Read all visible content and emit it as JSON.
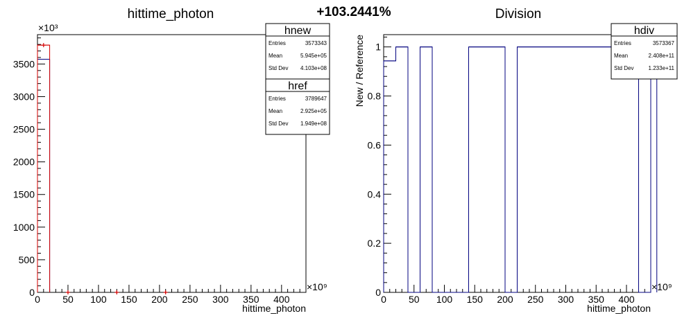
{
  "canvas_title": "+103.2441%",
  "chart_data": [
    {
      "type": "histogram",
      "title": "hittime_photon",
      "xlabel": "hittime_photon",
      "ylabel": "",
      "x_exponent_label": "×10⁹",
      "y_exponent_label": "×10³",
      "xlim": [
        0,
        440
      ],
      "ylim": [
        0,
        3950
      ],
      "x_ticks": [
        "0",
        "50",
        "100",
        "150",
        "200",
        "250",
        "300",
        "350",
        "400"
      ],
      "y_ticks": [
        "0",
        "500",
        "1000",
        "1500",
        "2000",
        "2500",
        "3000",
        "3500"
      ],
      "bin_width": 20,
      "series": [
        {
          "name": "hnew",
          "color": "#00007f",
          "bins": [
            [
              0,
              20,
              3573.343
            ]
          ]
        },
        {
          "name": "href",
          "color": "#d40000",
          "bins": [
            [
              0,
              20,
              3789.647
            ]
          ],
          "markers": [
            [
              10,
              3789.647
            ],
            [
              50,
              0
            ],
            [
              130,
              0
            ],
            [
              210,
              0
            ]
          ]
        }
      ],
      "stats": [
        {
          "title": "hnew",
          "rows": [
            {
              "key": "Entries",
              "value": "3573343"
            },
            {
              "key": "Mean",
              "value": "5.945e+05"
            },
            {
              "key": "Std Dev",
              "value": "4.103e+08"
            }
          ]
        },
        {
          "title": "href",
          "rows": [
            {
              "key": "Entries",
              "value": "3789647"
            },
            {
              "key": "Mean",
              "value": "2.925e+05"
            },
            {
              "key": "Std Dev",
              "value": "1.949e+08"
            }
          ]
        }
      ]
    },
    {
      "type": "histogram",
      "title": "Division",
      "xlabel": "hittime_photon",
      "ylabel": "New / Reference",
      "x_exponent_label": "×10⁹",
      "xlim": [
        0,
        440
      ],
      "ylim": [
        0,
        1.05
      ],
      "x_ticks": [
        "0",
        "50",
        "100",
        "150",
        "200",
        "250",
        "300",
        "350",
        "400"
      ],
      "y_ticks": [
        "0",
        "0.2",
        "0.4",
        "0.6",
        "0.8",
        "1"
      ],
      "bin_width": 20,
      "series": [
        {
          "name": "hdiv",
          "color": "#00007f",
          "bins": [
            [
              0,
              20,
              0.943
            ],
            [
              20,
              40,
              1
            ],
            [
              40,
              60,
              0
            ],
            [
              60,
              80,
              1
            ],
            [
              80,
              140,
              0
            ],
            [
              140,
              200,
              1
            ],
            [
              200,
              220,
              0
            ],
            [
              220,
              400,
              1
            ],
            [
              400,
              420,
              0.98
            ],
            [
              420,
              440,
              0
            ],
            [
              440,
              450,
              1
            ]
          ]
        }
      ],
      "stats": [
        {
          "title": "hdiv",
          "rows": [
            {
              "key": "Entries",
              "value": "3573367"
            },
            {
              "key": "Mean",
              "value": "2.408e+11"
            },
            {
              "key": "Std Dev",
              "value": "1.233e+11"
            }
          ]
        }
      ]
    }
  ]
}
